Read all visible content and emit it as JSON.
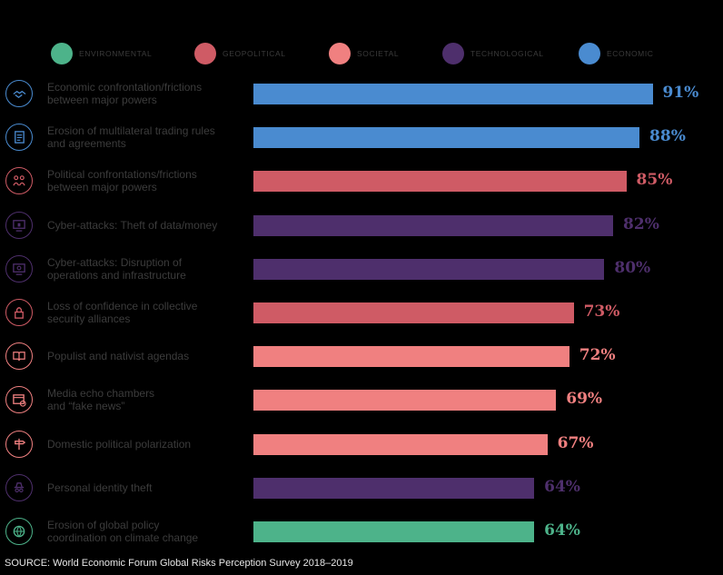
{
  "legend": [
    {
      "label": "ENVIRONMENTAL",
      "color": "#4db38a",
      "icon": "environmental-dot-icon"
    },
    {
      "label": "GEOPOLITICAL",
      "color": "#cf5b65",
      "icon": "geopolitical-dot-icon"
    },
    {
      "label": "SOCIETAL",
      "color": "#f08080",
      "icon": "societal-dot-icon"
    },
    {
      "label": "TECHNOLOGICAL",
      "color": "#4e2f6c",
      "icon": "technological-dot-icon"
    },
    {
      "label": "ECONOMIC",
      "color": "#4a8bd0",
      "icon": "economic-dot-icon"
    }
  ],
  "chart_data": {
    "type": "bar",
    "orientation": "horizontal",
    "xlim": [
      0,
      100
    ],
    "categories": [
      "Economic confrontation/frictions between major powers",
      "Erosion of multilateral trading rules and agreements",
      "Political confrontations/frictions between major powers",
      "Cyber-attacks: Theft of data/money",
      "Cyber-attacks: Disruption of operations and infrastructure",
      "Loss of confidence in collective security alliances",
      "Populist and nativist agendas",
      "Media echo chambers and “fake news”",
      "Domestic political polarization",
      "Personal identity theft",
      "Erosion of global policy coordination on climate change"
    ],
    "values": [
      91,
      88,
      85,
      82,
      80,
      73,
      72,
      69,
      67,
      64,
      64
    ],
    "value_labels": [
      "91%",
      "88%",
      "85%",
      "82%",
      "80%",
      "73%",
      "72%",
      "69%",
      "67%",
      "64%",
      "64%"
    ],
    "risk_category": [
      "ECONOMIC",
      "ECONOMIC",
      "GEOPOLITICAL",
      "TECHNOLOGICAL",
      "TECHNOLOGICAL",
      "GEOPOLITICAL",
      "SOCIETAL",
      "SOCIETAL",
      "SOCIETAL",
      "TECHNOLOGICAL",
      "ENVIRONMENTAL"
    ],
    "colors": [
      "#4a8bd0",
      "#4a8bd0",
      "#cf5b65",
      "#4e2f6c",
      "#4e2f6c",
      "#cf5b65",
      "#f08080",
      "#f08080",
      "#f08080",
      "#4e2f6c",
      "#4db38a"
    ],
    "label_lines": [
      [
        "Economic confrontation/frictions",
        "between major powers"
      ],
      [
        "Erosion of multilateral trading rules",
        "and agreements"
      ],
      [
        "Political confrontations/frictions",
        "between major powers"
      ],
      [
        "Cyber-attacks: Theft of data/money"
      ],
      [
        "Cyber-attacks: Disruption of",
        "operations and infrastructure"
      ],
      [
        "Loss of confidence in collective",
        "security alliances"
      ],
      [
        "Populist and nativist agendas"
      ],
      [
        "Media echo chambers",
        "and “fake news”"
      ],
      [
        "Domestic political polarization"
      ],
      [
        "Personal identity theft"
      ],
      [
        "Erosion of global policy",
        "coordination on climate change"
      ]
    ],
    "icons": [
      "handshake-icon",
      "document-icon",
      "people-conflict-icon",
      "computer-lock-icon",
      "computer-network-icon",
      "padlock-icon",
      "book-icon",
      "browser-icon",
      "signpost-icon",
      "spy-icon",
      "globe-icon"
    ],
    "legend_position": "top"
  },
  "source": "SOURCE: World Economic Forum Global Risks Perception Survey 2018–2019"
}
